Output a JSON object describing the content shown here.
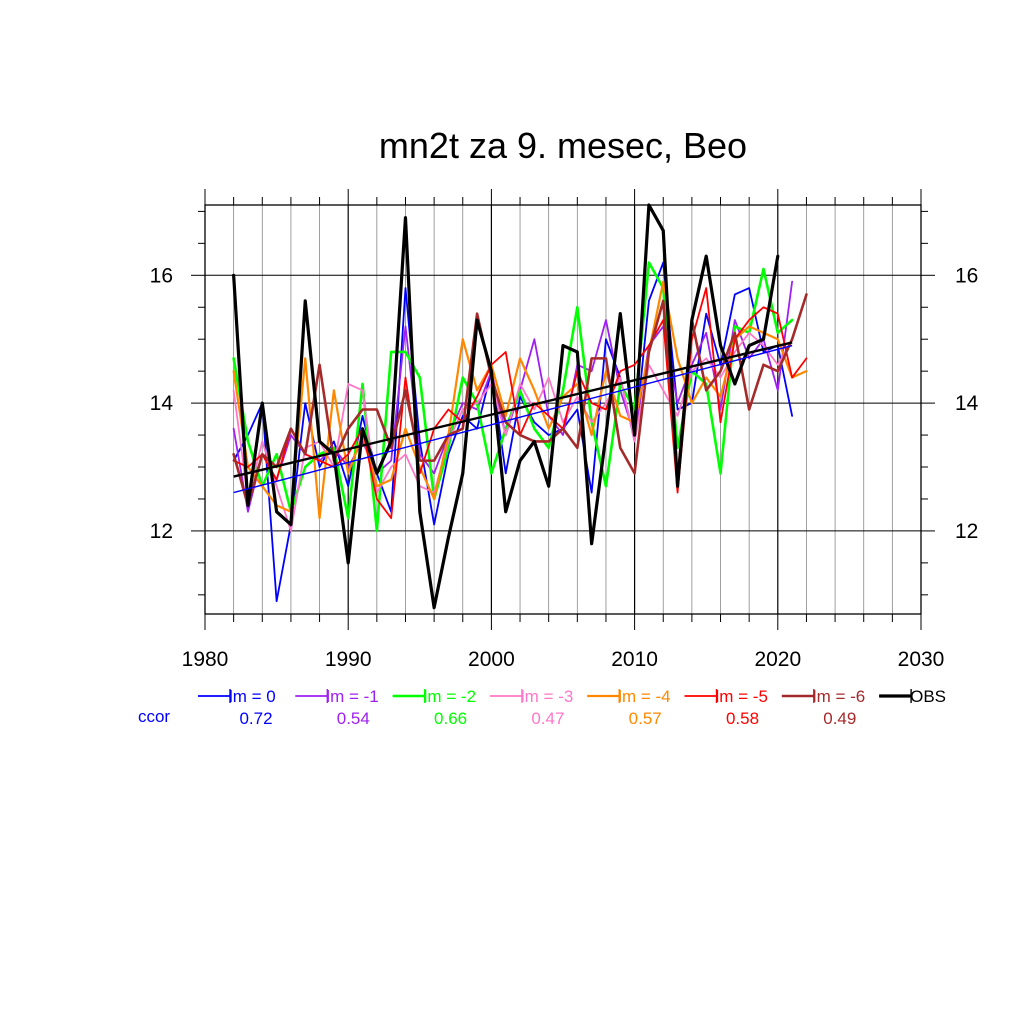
{
  "chart_data": {
    "type": "line",
    "title": "mn2t za 9. mesec, Beo",
    "xlabel": "",
    "ylabel": "",
    "xlim": [
      1980,
      2030
    ],
    "ylim": [
      10.7,
      17.1
    ],
    "xticks": [
      1980,
      1990,
      2000,
      2010,
      2020,
      2030
    ],
    "yticks": [
      12,
      14,
      16
    ],
    "grid": true,
    "legend_placement": "bottom",
    "ccor_label": "ccor",
    "ccor_color": "#0000ff",
    "series": [
      {
        "name": "lm = 0",
        "color": "#0000ff",
        "ccor": "0.72",
        "width": 1.8,
        "x0": 1982,
        "values": [
          13.1,
          13.5,
          14.0,
          10.9,
          12.1,
          14.0,
          13.0,
          13.4,
          12.7,
          13.8,
          12.9,
          12.3,
          15.8,
          13.4,
          12.1,
          13.2,
          13.8,
          13.6,
          14.5,
          12.9,
          14.1,
          13.7,
          13.5,
          13.6,
          13.9,
          12.6,
          15.0,
          14.4,
          13.4,
          15.6,
          16.2,
          13.9,
          14.0,
          15.4,
          14.6,
          15.7,
          15.8,
          14.8,
          14.9,
          13.8
        ],
        "trend": [
          12.6,
          14.9
        ]
      },
      {
        "name": "lm = -1",
        "color": "#a020f0",
        "ccor": "0.54",
        "width": 1.8,
        "x0": 1982,
        "values": [
          13.6,
          12.3,
          13.2,
          12.8,
          13.5,
          13.2,
          13.1,
          13.3,
          13.0,
          13.4,
          12.9,
          13.1,
          15.2,
          13.2,
          12.9,
          13.5,
          14.0,
          13.9,
          14.5,
          13.5,
          14.2,
          15.0,
          13.8,
          13.5,
          14.6,
          14.5,
          15.3,
          14.2,
          13.5,
          14.9,
          15.2,
          14.0,
          14.6,
          15.1,
          13.9,
          15.3,
          14.7,
          15.0,
          14.2,
          15.9
        ]
      },
      {
        "name": "lm = -2",
        "color": "#00ff00",
        "ccor": "0.66",
        "width": 2.6,
        "x0": 1982,
        "values": [
          14.7,
          13.4,
          12.7,
          13.2,
          12.3,
          13.0,
          13.2,
          13.3,
          12.2,
          14.3,
          12.0,
          14.8,
          14.8,
          14.4,
          12.5,
          13.3,
          14.4,
          14.0,
          12.9,
          13.6,
          14.2,
          13.6,
          13.3,
          14.2,
          15.5,
          13.7,
          12.7,
          14.3,
          13.9,
          16.2,
          15.8,
          13.3,
          14.5,
          14.3,
          12.9,
          15.2,
          15.1,
          16.1,
          15.1,
          15.3
        ]
      },
      {
        "name": "lm = -3",
        "color": "#ff77c8",
        "ccor": "0.47",
        "width": 1.8,
        "x0": 1982,
        "values": [
          14.2,
          12.5,
          13.4,
          12.7,
          12.0,
          13.3,
          13.4,
          13.0,
          14.3,
          14.2,
          12.6,
          13.0,
          13.2,
          12.7,
          12.6,
          13.4,
          13.9,
          14.0,
          14.3,
          13.5,
          14.3,
          13.9,
          14.4,
          13.7,
          14.1,
          13.7,
          14.0,
          14.4,
          13.4,
          14.6,
          14.2,
          13.8,
          14.5,
          14.7,
          14.4,
          14.8,
          15.1,
          14.9,
          14.6,
          15.0
        ]
      },
      {
        "name": "lm = -4",
        "color": "#ff8800",
        "ccor": "0.57",
        "width": 2.2,
        "x0": 1982,
        "values": [
          14.5,
          13.0,
          12.7,
          12.4,
          12.3,
          14.7,
          12.2,
          14.2,
          12.9,
          13.5,
          12.7,
          12.8,
          13.6,
          13.0,
          12.5,
          13.5,
          15.0,
          14.2,
          14.6,
          13.8,
          14.7,
          14.2,
          13.6,
          14.1,
          14.3,
          13.5,
          14.5,
          13.8,
          13.7,
          14.8,
          15.9,
          14.7,
          14.0,
          14.4,
          14.1,
          15.0,
          15.2,
          15.1,
          15.0,
          14.4,
          14.5
        ]
      },
      {
        "name": "lm = -5",
        "color": "#ff0000",
        "ccor": "0.58",
        "width": 1.8,
        "x0": 1982,
        "values": [
          13.1,
          13.0,
          13.2,
          12.8,
          13.6,
          13.2,
          13.1,
          13.0,
          13.2,
          13.6,
          12.5,
          12.2,
          14.4,
          12.9,
          13.6,
          13.9,
          13.7,
          14.1,
          14.6,
          14.8,
          13.5,
          14.0,
          13.8,
          13.6,
          14.5,
          14.0,
          13.9,
          14.5,
          14.6,
          14.9,
          15.3,
          12.6,
          15.0,
          15.8,
          13.7,
          15.0,
          15.3,
          15.5,
          15.4,
          14.4,
          14.7
        ]
      },
      {
        "name": "lm = -6",
        "color": "#a52a2a",
        "ccor": "0.49",
        "width": 2.6,
        "x0": 1982,
        "values": [
          13.2,
          12.4,
          13.2,
          13.0,
          13.6,
          13.2,
          14.6,
          13.1,
          13.6,
          13.9,
          13.9,
          13.3,
          14.2,
          13.1,
          13.1,
          13.5,
          13.6,
          15.4,
          14.4,
          13.7,
          13.5,
          13.4,
          13.4,
          13.6,
          13.3,
          14.7,
          14.7,
          13.3,
          12.9,
          14.8,
          15.6,
          12.8,
          15.3,
          14.2,
          14.5,
          15.1,
          13.9,
          14.6,
          14.5,
          15.0,
          15.7
        ]
      },
      {
        "name": "OBS",
        "color": "#000000",
        "ccor": "",
        "width": 3.2,
        "x0": 1982,
        "values": [
          16.0,
          12.4,
          14.0,
          12.3,
          12.1,
          15.6,
          13.4,
          13.2,
          11.5,
          13.6,
          12.9,
          13.4,
          16.9,
          12.3,
          10.8,
          11.9,
          12.9,
          15.3,
          14.5,
          12.3,
          13.1,
          13.4,
          12.7,
          14.9,
          14.8,
          11.8,
          13.5,
          15.4,
          13.5,
          17.1,
          16.7,
          12.7,
          15.3,
          16.3,
          14.9,
          14.3,
          14.9,
          15.0,
          16.3
        ],
        "trend": [
          12.85,
          14.95
        ]
      }
    ]
  }
}
